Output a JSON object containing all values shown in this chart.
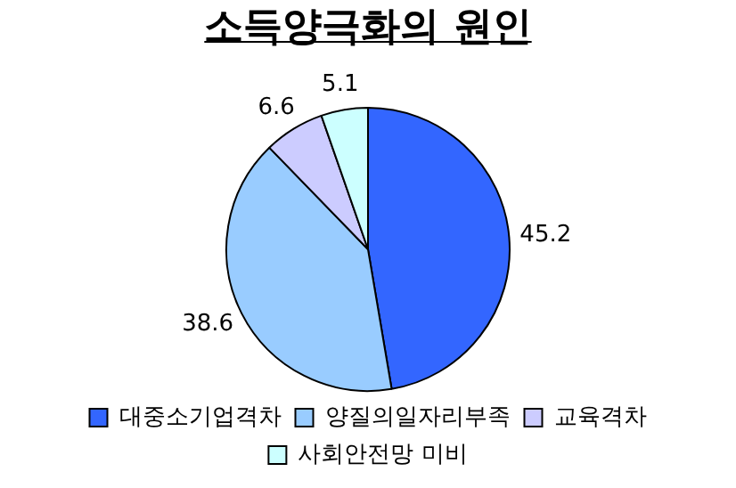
{
  "chart_data": {
    "type": "pie",
    "title": "소득양극화의 원인",
    "categories": [
      "대중소기업격차",
      "양질의일자리부족",
      "교육격차",
      "사회안전망 미비"
    ],
    "values": [
      45.2,
      38.6,
      6.6,
      5.1
    ],
    "colors": [
      "#3366ff",
      "#99ccff",
      "#ccccff",
      "#ccffff"
    ],
    "data_labels": true,
    "legend": "bottom"
  }
}
